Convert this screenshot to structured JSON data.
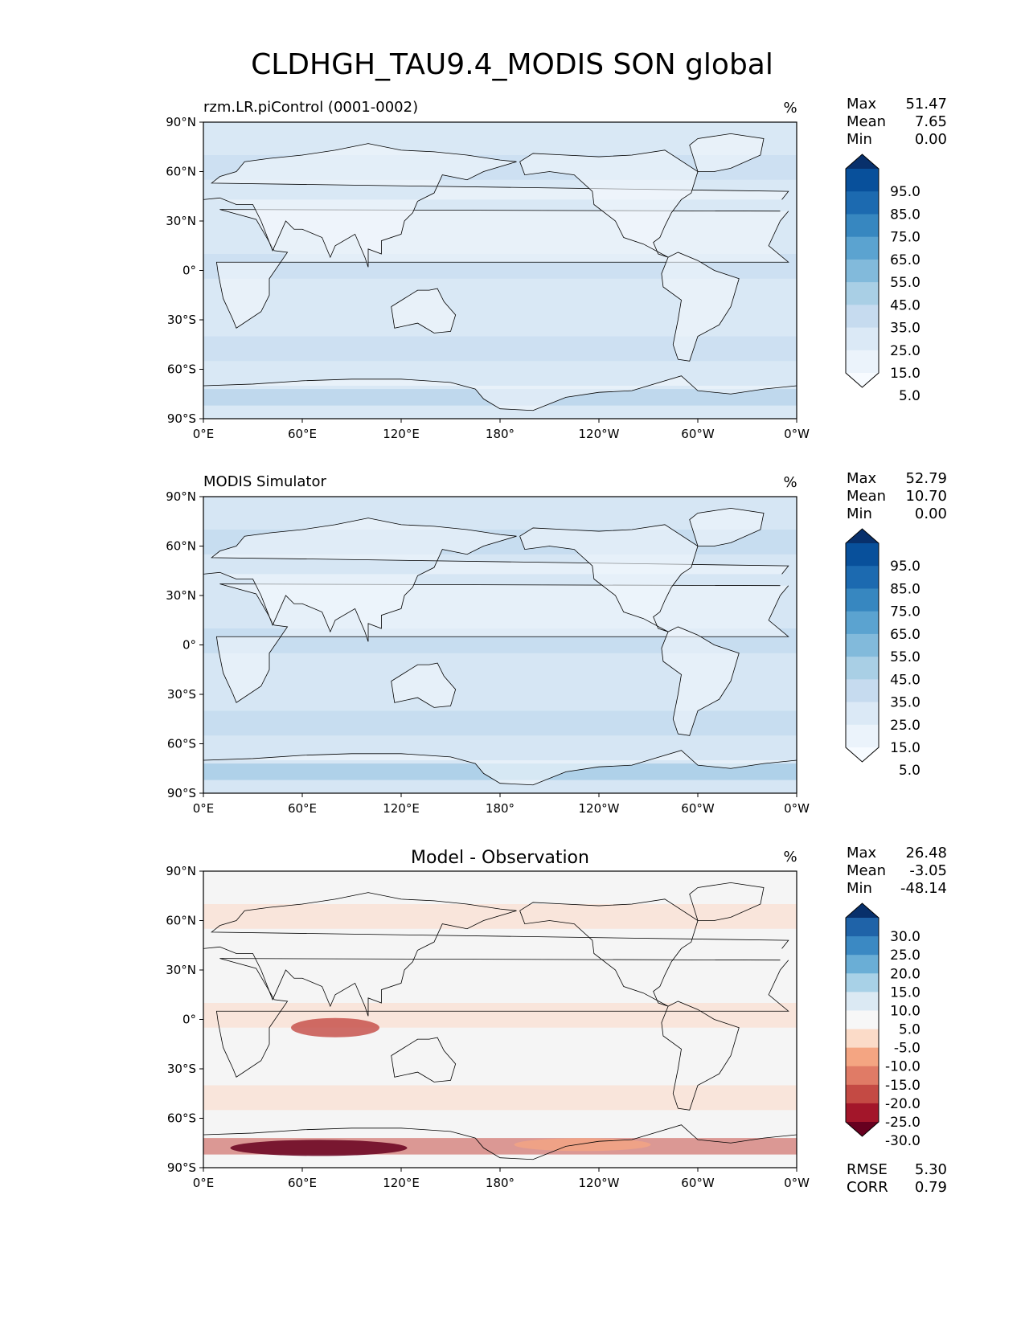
{
  "figure": {
    "title": "CLDHGH_TAU9.4_MODIS SON global"
  },
  "axes": {
    "lat_ticks": [
      "90°N",
      "60°N",
      "30°N",
      "0°",
      "30°S",
      "60°S",
      "90°S"
    ],
    "lon_ticks": [
      "0°E",
      "60°E",
      "120°E",
      "180°",
      "120°W",
      "60°W",
      "0°W"
    ]
  },
  "panels": [
    {
      "id": "test",
      "left_title": "rzm.LR.piControl (0001-0002)",
      "center_title": "",
      "units": "%",
      "stats": [
        {
          "label": "Max",
          "value": "51.47"
        },
        {
          "label": "Mean",
          "value": "7.65"
        },
        {
          "label": "Min",
          "value": "0.00"
        }
      ],
      "colorbar": {
        "labels": [
          "95.0",
          "85.0",
          "75.0",
          "65.0",
          "55.0",
          "45.0",
          "35.0",
          "25.0",
          "15.0",
          "5.0"
        ],
        "colors": [
          "#08306b",
          "#08509b",
          "#1c6ab0",
          "#3787c0",
          "#5ba3d0",
          "#82badb",
          "#a9cfe5",
          "#c6dbef",
          "#dbe9f6",
          "#ebf3fb",
          "#f7fbff"
        ]
      },
      "field_colors": {
        "ocean": "#d9e8f5",
        "land": "#f2f7fc",
        "band": "#c3d9ee",
        "strong": "#a9cbe5"
      },
      "metrics": []
    },
    {
      "id": "reference",
      "left_title": "MODIS Simulator",
      "center_title": "",
      "units": "%",
      "stats": [
        {
          "label": "Max",
          "value": "52.79"
        },
        {
          "label": "Mean",
          "value": "10.70"
        },
        {
          "label": "Min",
          "value": "0.00"
        }
      ],
      "colorbar": {
        "labels": [
          "95.0",
          "85.0",
          "75.0",
          "65.0",
          "55.0",
          "45.0",
          "35.0",
          "25.0",
          "15.0",
          "5.0"
        ],
        "colors": [
          "#08306b",
          "#08509b",
          "#1c6ab0",
          "#3787c0",
          "#5ba3d0",
          "#82badb",
          "#a9cfe5",
          "#c6dbef",
          "#dbe9f6",
          "#ebf3fb",
          "#f7fbff"
        ]
      },
      "field_colors": {
        "ocean": "#d6e6f4",
        "land": "#f0f6fc",
        "band": "#bcd5ec",
        "strong": "#8fbfe0"
      },
      "metrics": []
    },
    {
      "id": "difference",
      "left_title": "",
      "center_title": "Model - Observation",
      "units": "%",
      "stats": [
        {
          "label": "Max",
          "value": "26.48"
        },
        {
          "label": "Mean",
          "value": "-3.05"
        },
        {
          "label": "Min",
          "value": "-48.14"
        }
      ],
      "colorbar": {
        "labels": [
          "30.0",
          "25.0",
          "20.0",
          "15.0",
          "10.0",
          "5.0",
          "-5.0",
          "-10.0",
          "-15.0",
          "-20.0",
          "-25.0",
          "-30.0"
        ],
        "colors": [
          "#08306b",
          "#1f63a8",
          "#3b89c3",
          "#6aaed6",
          "#a8d1e7",
          "#dbe9f3",
          "#f7f7f7",
          "#fbdbc8",
          "#f4a582",
          "#e07b66",
          "#c44a44",
          "#a3162a",
          "#67001f"
        ]
      },
      "field_colors": {
        "ocean": "#f5f5f5",
        "land": "#f5f5f5",
        "band": "#fbd7c4",
        "strong": "#c44a44"
      },
      "metrics": [
        {
          "label": "RMSE",
          "value": "5.30"
        },
        {
          "label": "CORR",
          "value": "0.79"
        }
      ]
    }
  ]
}
